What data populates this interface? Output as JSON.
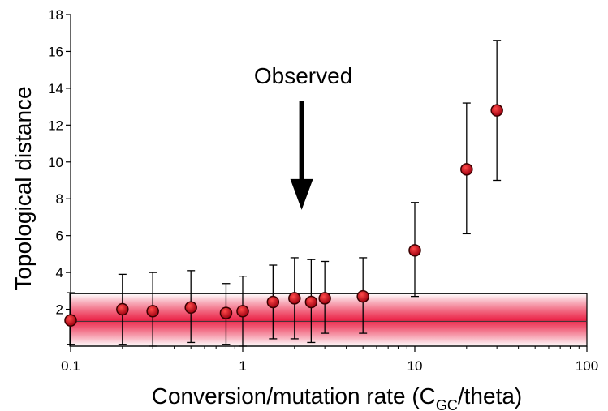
{
  "chart_data": {
    "type": "scatter",
    "x_scale": "log",
    "xlim": [
      0.1,
      100
    ],
    "ylim": [
      0,
      18
    ],
    "xticks": [
      {
        "value": 0.1,
        "label": "0.1"
      },
      {
        "value": 1,
        "label": "1"
      },
      {
        "value": 10,
        "label": "10"
      },
      {
        "value": 100,
        "label": "100"
      }
    ],
    "yticks": [
      {
        "value": 2,
        "label": "2"
      },
      {
        "value": 4,
        "label": "4"
      },
      {
        "value": 6,
        "label": "6"
      },
      {
        "value": 8,
        "label": "8"
      },
      {
        "value": 10,
        "label": "10"
      },
      {
        "value": 12,
        "label": "12"
      },
      {
        "value": 14,
        "label": "14"
      },
      {
        "value": 16,
        "label": "16"
      },
      {
        "value": 18,
        "label": "18"
      }
    ],
    "xlabel": {
      "main": "Conversion/mutation rate (C",
      "sub": "GC",
      "end": "/theta)"
    },
    "ylabel": "Topological distance",
    "grid": false,
    "legend": "none",
    "points": [
      {
        "x": 0.1,
        "y": 1.4,
        "y_low": 0.1,
        "y_high": 2.9
      },
      {
        "x": 0.2,
        "y": 2.0,
        "y_low": 0.1,
        "y_high": 3.9
      },
      {
        "x": 0.3,
        "y": 1.9,
        "y_low": 0.0,
        "y_high": 4.0
      },
      {
        "x": 0.5,
        "y": 2.1,
        "y_low": 0.2,
        "y_high": 4.1
      },
      {
        "x": 0.8,
        "y": 1.8,
        "y_low": 0.1,
        "y_high": 3.4
      },
      {
        "x": 1.0,
        "y": 1.9,
        "y_low": 0.0,
        "y_high": 3.8
      },
      {
        "x": 1.5,
        "y": 2.4,
        "y_low": 0.4,
        "y_high": 4.4
      },
      {
        "x": 2.0,
        "y": 2.6,
        "y_low": 0.4,
        "y_high": 4.8
      },
      {
        "x": 2.5,
        "y": 2.4,
        "y_low": 0.2,
        "y_high": 4.7
      },
      {
        "x": 3.0,
        "y": 2.6,
        "y_low": 0.7,
        "y_high": 4.6
      },
      {
        "x": 5.0,
        "y": 2.7,
        "y_low": 0.7,
        "y_high": 4.8
      },
      {
        "x": 10.0,
        "y": 5.2,
        "y_low": 2.7,
        "y_high": 7.8
      },
      {
        "x": 20.0,
        "y": 9.6,
        "y_low": 6.1,
        "y_high": 13.2
      },
      {
        "x": 30.0,
        "y": 12.8,
        "y_low": 9.0,
        "y_high": 16.6
      }
    ],
    "observed_band": {
      "center": 1.35,
      "low": 0,
      "high": 2.85,
      "color": "#e8002a"
    },
    "annotation": {
      "text": "Observed",
      "x": 2.2,
      "arrow_y_top": 13.3,
      "arrow_y_bottom": 7.4
    },
    "colors": {
      "point_fill": "#c8102e",
      "point_stroke": "#3a0000",
      "errorbar": "#000000"
    }
  }
}
